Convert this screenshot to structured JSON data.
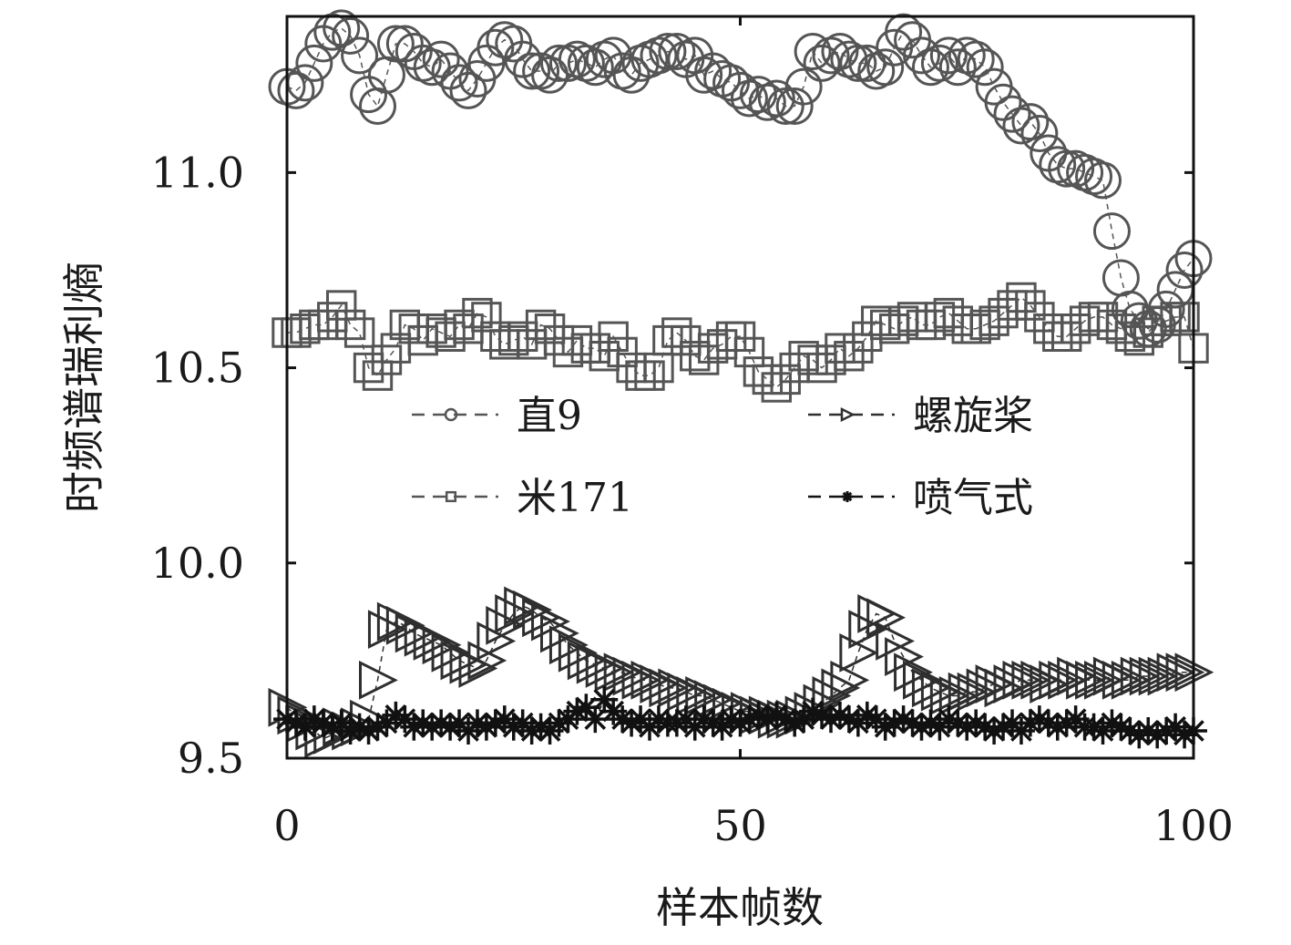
{
  "chart_data": {
    "type": "scatter",
    "xlabel": "样本帧数",
    "ylabel": "时频谱瑞利熵",
    "xlim": [
      0,
      100
    ],
    "ylim": [
      9.5,
      11.4
    ],
    "xticks": [
      "0",
      "50",
      "100"
    ],
    "yticks": [
      "9.5",
      "10.0",
      "10.5",
      "11.0"
    ],
    "grid": false,
    "legend_position": "center",
    "series": [
      {
        "name": "直9",
        "marker": "circle",
        "color": "#555555",
        "x": [
          0,
          1,
          2,
          3,
          4,
          5,
          6,
          7,
          8,
          9,
          10,
          11,
          12,
          13,
          14,
          15,
          16,
          17,
          18,
          19,
          20,
          21,
          22,
          23,
          24,
          25,
          26,
          27,
          28,
          29,
          30,
          31,
          32,
          33,
          34,
          35,
          36,
          37,
          38,
          39,
          40,
          41,
          42,
          43,
          44,
          45,
          46,
          47,
          48,
          49,
          50,
          51,
          52,
          53,
          54,
          55,
          56,
          57,
          58,
          59,
          60,
          61,
          62,
          63,
          64,
          65,
          66,
          67,
          68,
          69,
          70,
          71,
          72,
          73,
          74,
          75,
          76,
          77,
          78,
          79,
          80,
          81,
          82,
          83,
          84,
          85,
          86,
          87,
          88,
          89,
          90,
          91,
          92,
          93,
          94,
          95,
          96,
          97,
          98,
          99,
          100
        ],
        "values": [
          11.22,
          11.21,
          11.23,
          11.28,
          11.33,
          11.36,
          11.37,
          11.35,
          11.3,
          11.2,
          11.17,
          11.25,
          11.33,
          11.33,
          11.31,
          11.28,
          11.27,
          11.29,
          11.26,
          11.23,
          11.21,
          11.24,
          11.28,
          11.32,
          11.34,
          11.33,
          11.29,
          11.26,
          11.26,
          11.25,
          11.28,
          11.28,
          11.29,
          11.28,
          11.27,
          11.29,
          11.3,
          11.26,
          11.25,
          11.28,
          11.29,
          11.3,
          11.31,
          11.31,
          11.29,
          11.3,
          11.25,
          11.26,
          11.24,
          11.23,
          11.21,
          11.19,
          11.2,
          11.18,
          11.19,
          11.17,
          11.17,
          11.22,
          11.31,
          11.28,
          11.3,
          11.31,
          11.29,
          11.28,
          11.28,
          11.26,
          11.27,
          11.32,
          11.36,
          11.34,
          11.3,
          11.27,
          11.28,
          11.3,
          11.27,
          11.3,
          11.29,
          11.27,
          11.22,
          11.18,
          11.15,
          11.12,
          11.13,
          11.1,
          11.05,
          11.02,
          11.01,
          11.01,
          11.0,
          10.99,
          10.98,
          10.85,
          10.73,
          10.65,
          10.62,
          10.6,
          10.61,
          10.65,
          10.7,
          10.75,
          10.78
        ]
      },
      {
        "name": "米171",
        "marker": "square",
        "color": "#555555",
        "x": [
          0,
          1,
          2,
          3,
          4,
          5,
          6,
          7,
          8,
          9,
          10,
          11,
          12,
          13,
          14,
          15,
          16,
          17,
          18,
          19,
          20,
          21,
          22,
          23,
          24,
          25,
          26,
          27,
          28,
          29,
          30,
          31,
          32,
          33,
          34,
          35,
          36,
          37,
          38,
          39,
          40,
          41,
          42,
          43,
          44,
          45,
          46,
          47,
          48,
          49,
          50,
          51,
          52,
          53,
          54,
          55,
          56,
          57,
          58,
          59,
          60,
          61,
          62,
          63,
          64,
          65,
          66,
          67,
          68,
          69,
          70,
          71,
          72,
          73,
          74,
          75,
          76,
          77,
          78,
          79,
          80,
          81,
          82,
          83,
          84,
          85,
          86,
          87,
          88,
          89,
          90,
          91,
          92,
          93,
          94,
          95,
          96,
          97,
          98,
          99,
          100
        ],
        "values": [
          10.59,
          10.59,
          10.6,
          10.61,
          10.61,
          10.63,
          10.66,
          10.61,
          10.59,
          10.5,
          10.48,
          10.52,
          10.55,
          10.61,
          10.6,
          10.57,
          10.6,
          10.59,
          10.58,
          10.61,
          10.6,
          10.64,
          10.63,
          10.58,
          10.56,
          10.57,
          10.58,
          10.56,
          10.61,
          10.6,
          10.57,
          10.54,
          10.57,
          10.55,
          10.55,
          10.53,
          10.58,
          10.54,
          10.5,
          10.48,
          10.48,
          10.5,
          10.57,
          10.59,
          10.57,
          10.53,
          10.52,
          10.55,
          10.56,
          10.58,
          10.58,
          10.54,
          10.49,
          10.47,
          10.45,
          10.47,
          10.5,
          10.53,
          10.52,
          10.5,
          10.52,
          10.55,
          10.53,
          10.55,
          10.58,
          10.62,
          10.61,
          10.6,
          10.62,
          10.63,
          10.61,
          10.61,
          10.63,
          10.64,
          10.62,
          10.6,
          10.6,
          10.61,
          10.62,
          10.64,
          10.66,
          10.68,
          10.66,
          10.63,
          10.6,
          10.58,
          10.58,
          10.6,
          10.62,
          10.63,
          10.63,
          10.61,
          10.6,
          10.58,
          10.57,
          10.59,
          10.62,
          10.62,
          10.63,
          10.63,
          10.55
        ]
      },
      {
        "name": "螺旋桨",
        "marker": "triangle-right",
        "color": "#2f2f2f",
        "x": [
          0,
          1,
          2,
          3,
          4,
          5,
          6,
          7,
          8,
          9,
          10,
          11,
          12,
          13,
          14,
          15,
          16,
          17,
          18,
          19,
          20,
          21,
          22,
          23,
          24,
          25,
          26,
          27,
          28,
          29,
          30,
          31,
          32,
          33,
          34,
          35,
          36,
          37,
          38,
          39,
          40,
          41,
          42,
          43,
          44,
          45,
          46,
          47,
          48,
          49,
          50,
          51,
          52,
          53,
          54,
          55,
          56,
          57,
          58,
          59,
          60,
          61,
          62,
          63,
          64,
          65,
          66,
          67,
          68,
          69,
          70,
          71,
          72,
          73,
          74,
          75,
          76,
          77,
          78,
          79,
          80,
          81,
          82,
          83,
          84,
          85,
          86,
          87,
          88,
          89,
          90,
          91,
          92,
          93,
          94,
          95,
          96,
          97,
          98,
          99,
          100
        ],
        "values": [
          9.63,
          9.61,
          9.59,
          9.57,
          9.55,
          9.56,
          9.58,
          9.57,
          9.58,
          9.6,
          9.7,
          9.83,
          9.85,
          9.84,
          9.82,
          9.81,
          9.8,
          9.79,
          9.77,
          9.75,
          9.74,
          9.73,
          9.75,
          9.8,
          9.84,
          9.87,
          9.89,
          9.88,
          9.86,
          9.85,
          9.82,
          9.79,
          9.77,
          9.75,
          9.74,
          9.73,
          9.72,
          9.72,
          9.71,
          9.7,
          9.7,
          9.69,
          9.68,
          9.68,
          9.67,
          9.66,
          9.66,
          9.65,
          9.64,
          9.63,
          9.62,
          9.62,
          9.61,
          9.61,
          9.6,
          9.6,
          9.6,
          9.61,
          9.62,
          9.64,
          9.66,
          9.68,
          9.7,
          9.77,
          9.83,
          9.87,
          9.86,
          9.8,
          9.76,
          9.72,
          9.7,
          9.68,
          9.67,
          9.66,
          9.66,
          9.67,
          9.67,
          9.68,
          9.69,
          9.68,
          9.69,
          9.7,
          9.7,
          9.7,
          9.69,
          9.7,
          9.7,
          9.71,
          9.7,
          9.7,
          9.7,
          9.71,
          9.7,
          9.7,
          9.71,
          9.71,
          9.71,
          9.71,
          9.72,
          9.72,
          9.72
        ]
      },
      {
        "name": "喷气式",
        "marker": "star",
        "color": "#111111",
        "x": [
          0,
          1,
          2,
          3,
          4,
          5,
          6,
          7,
          8,
          9,
          10,
          11,
          12,
          13,
          14,
          15,
          16,
          17,
          18,
          19,
          20,
          21,
          22,
          23,
          24,
          25,
          26,
          27,
          28,
          29,
          30,
          31,
          32,
          33,
          34,
          35,
          36,
          37,
          38,
          39,
          40,
          41,
          42,
          43,
          44,
          45,
          46,
          47,
          48,
          49,
          50,
          51,
          52,
          53,
          54,
          55,
          56,
          57,
          58,
          59,
          60,
          61,
          62,
          63,
          64,
          65,
          66,
          67,
          68,
          69,
          70,
          71,
          72,
          73,
          74,
          75,
          76,
          77,
          78,
          79,
          80,
          81,
          82,
          83,
          84,
          85,
          86,
          87,
          88,
          89,
          90,
          91,
          92,
          93,
          94,
          95,
          96,
          97,
          98,
          99,
          100
        ],
        "values": [
          9.6,
          9.59,
          9.58,
          9.6,
          9.59,
          9.58,
          9.59,
          9.57,
          9.58,
          9.57,
          9.58,
          9.59,
          9.61,
          9.6,
          9.58,
          9.59,
          9.58,
          9.59,
          9.58,
          9.59,
          9.57,
          9.59,
          9.58,
          9.59,
          9.6,
          9.58,
          9.59,
          9.57,
          9.58,
          9.57,
          9.59,
          9.6,
          9.62,
          9.63,
          9.6,
          9.65,
          9.62,
          9.6,
          9.59,
          9.6,
          9.58,
          9.6,
          9.59,
          9.59,
          9.6,
          9.58,
          9.6,
          9.59,
          9.58,
          9.6,
          9.59,
          9.6,
          9.61,
          9.6,
          9.61,
          9.6,
          9.59,
          9.6,
          9.62,
          9.61,
          9.6,
          9.61,
          9.6,
          9.59,
          9.61,
          9.6,
          9.58,
          9.59,
          9.6,
          9.59,
          9.58,
          9.59,
          9.58,
          9.6,
          9.59,
          9.58,
          9.59,
          9.58,
          9.57,
          9.58,
          9.59,
          9.57,
          9.59,
          9.6,
          9.59,
          9.58,
          9.59,
          9.6,
          9.58,
          9.58,
          9.57,
          9.59,
          9.58,
          9.57,
          9.56,
          9.57,
          9.56,
          9.57,
          9.58,
          9.56,
          9.57
        ]
      }
    ]
  }
}
